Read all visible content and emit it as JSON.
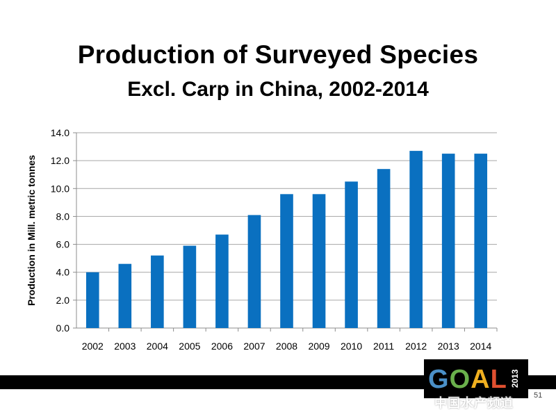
{
  "slide": {
    "title": "Production of Surveyed Species",
    "subtitle": "Excl. Carp in China, 2002-2014",
    "page_number": "51"
  },
  "logo": {
    "text": "GOAL",
    "year": "2013"
  },
  "watermark": {
    "text": "中国水产频道"
  },
  "colors": {
    "bar": "#0a70c0",
    "grid": "#a6a6a6",
    "axis": "#8c8c8c",
    "text": "#000000"
  },
  "chart_data": {
    "type": "bar",
    "title": "",
    "xlabel": "",
    "ylabel": "Production in Mill. metric tonnes",
    "ylim": [
      0,
      14
    ],
    "yticks": [
      "0.0",
      "2.0",
      "4.0",
      "6.0",
      "8.0",
      "10.0",
      "12.0",
      "14.0"
    ],
    "grid": true,
    "legend": "none",
    "categories": [
      "2002",
      "2003",
      "2004",
      "2005",
      "2006",
      "2007",
      "2008",
      "2009",
      "2010",
      "2011",
      "2012",
      "2013",
      "2014"
    ],
    "values": [
      4.0,
      4.6,
      5.2,
      5.9,
      6.7,
      8.1,
      9.6,
      9.6,
      10.5,
      11.4,
      12.7,
      12.5,
      12.5
    ]
  }
}
